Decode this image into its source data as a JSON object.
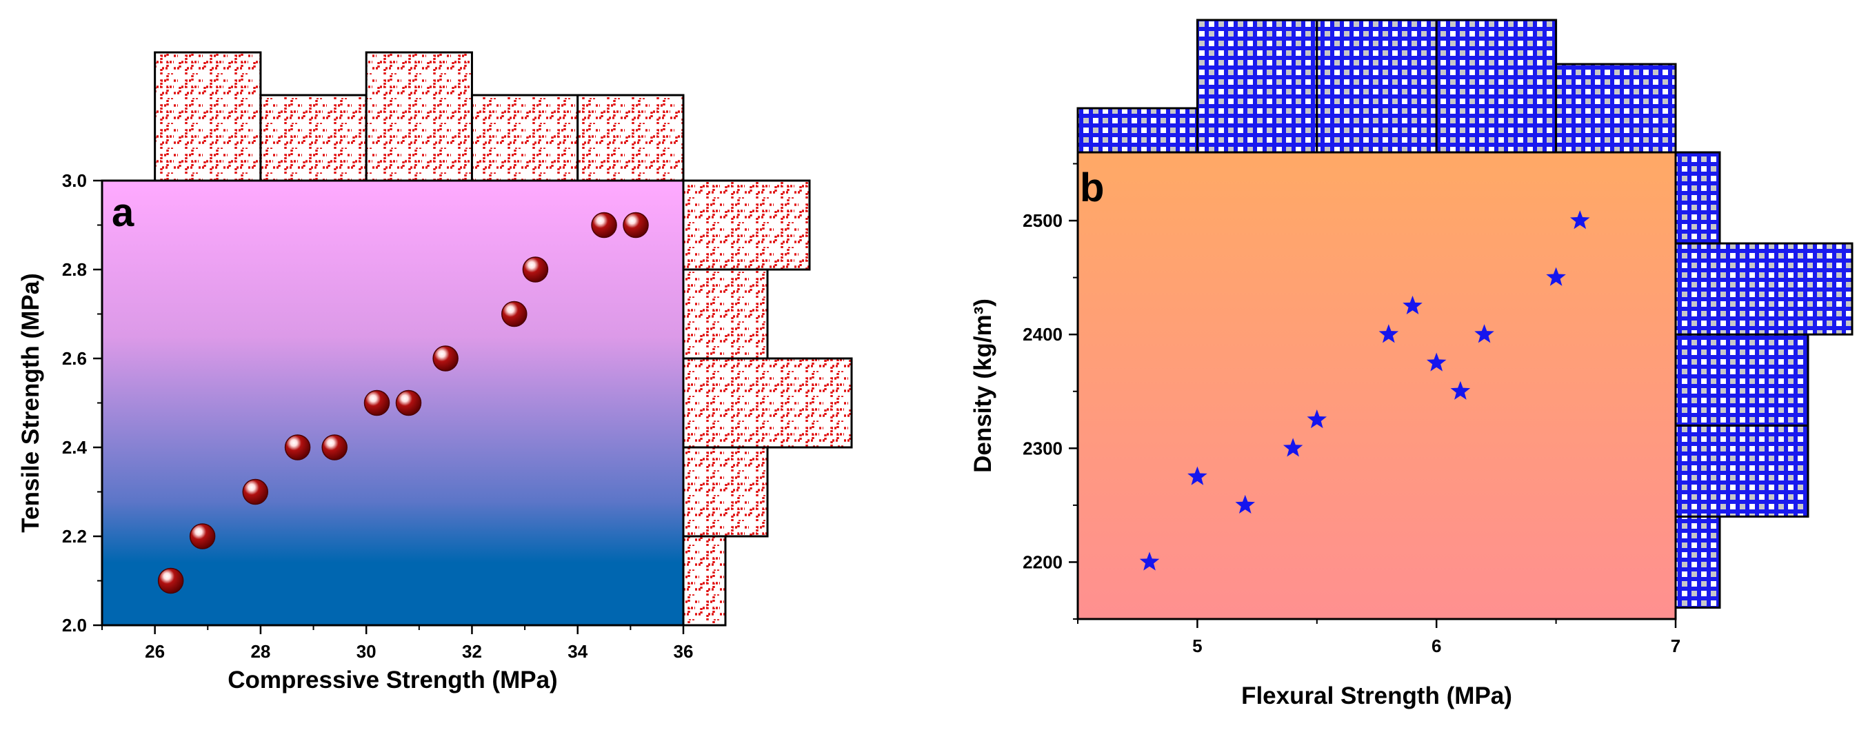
{
  "chart_data": [
    {
      "panel": "a",
      "type": "scatter",
      "xlabel": "Compressive Strength (MPa)",
      "ylabel": "Tensile Strength (MPa)",
      "xlim": [
        25,
        36
      ],
      "ylim": [
        2.0,
        3.0
      ],
      "xticks": [
        26,
        28,
        30,
        32,
        34,
        36
      ],
      "yticks": [
        2.0,
        2.2,
        2.4,
        2.6,
        2.8,
        3.0
      ],
      "ytick_labels": [
        "2.0",
        "2.2",
        "2.4",
        "2.6",
        "2.8",
        "3.0"
      ],
      "marker": "sphere",
      "marker_color": "#8b0000",
      "background_gradient": [
        "#ffaaff",
        "#0066b0"
      ],
      "points": [
        {
          "x": 26.3,
          "y": 2.1
        },
        {
          "x": 26.9,
          "y": 2.2
        },
        {
          "x": 27.9,
          "y": 2.3
        },
        {
          "x": 28.7,
          "y": 2.4
        },
        {
          "x": 29.4,
          "y": 2.4
        },
        {
          "x": 30.2,
          "y": 2.5
        },
        {
          "x": 30.8,
          "y": 2.5
        },
        {
          "x": 31.5,
          "y": 2.6
        },
        {
          "x": 32.8,
          "y": 2.7
        },
        {
          "x": 33.2,
          "y": 2.8
        },
        {
          "x": 34.5,
          "y": 2.9
        },
        {
          "x": 35.1,
          "y": 2.9
        }
      ],
      "top_histogram": {
        "bins": [
          [
            26,
            28
          ],
          [
            28,
            30
          ],
          [
            30,
            32
          ],
          [
            32,
            34
          ],
          [
            34,
            36
          ]
        ],
        "counts": [
          3,
          2,
          3,
          2,
          2
        ]
      },
      "right_histogram": {
        "bins": [
          [
            2.0,
            2.2
          ],
          [
            2.2,
            2.4
          ],
          [
            2.4,
            2.6
          ],
          [
            2.6,
            2.8
          ],
          [
            2.8,
            3.0
          ]
        ],
        "counts": [
          1,
          2,
          4,
          2,
          3
        ]
      },
      "histogram_pattern_color": "#e01010"
    },
    {
      "panel": "b",
      "type": "scatter",
      "xlabel": "Flexural Strength (MPa)",
      "ylabel": "Density (kg/m³)",
      "xlim": [
        4.5,
        7.0
      ],
      "ylim": [
        2150,
        2560
      ],
      "xticks": [
        5,
        6,
        7
      ],
      "yticks": [
        2200,
        2300,
        2400,
        2500
      ],
      "marker": "star",
      "marker_color": "#1515ee",
      "background_gradient": [
        "#ffa966",
        "#ff9090"
      ],
      "points": [
        {
          "x": 4.8,
          "y": 2200
        },
        {
          "x": 5.0,
          "y": 2275
        },
        {
          "x": 5.2,
          "y": 2250
        },
        {
          "x": 5.4,
          "y": 2300
        },
        {
          "x": 5.5,
          "y": 2325
        },
        {
          "x": 5.8,
          "y": 2400
        },
        {
          "x": 5.9,
          "y": 2425
        },
        {
          "x": 6.0,
          "y": 2375
        },
        {
          "x": 6.1,
          "y": 2350
        },
        {
          "x": 6.2,
          "y": 2400
        },
        {
          "x": 6.5,
          "y": 2450
        },
        {
          "x": 6.6,
          "y": 2500
        }
      ],
      "top_histogram": {
        "bins": [
          [
            4.5,
            5.0
          ],
          [
            5.0,
            5.5
          ],
          [
            5.5,
            6.0
          ],
          [
            6.0,
            6.5
          ],
          [
            6.5,
            7.0
          ]
        ],
        "counts": [
          1,
          3,
          3,
          3,
          2
        ]
      },
      "right_histogram": {
        "bins": [
          [
            2160,
            2240
          ],
          [
            2240,
            2320
          ],
          [
            2320,
            2400
          ],
          [
            2400,
            2480
          ],
          [
            2480,
            2560
          ]
        ],
        "counts": [
          1,
          3,
          3,
          4,
          1
        ]
      },
      "histogram_pattern_color": "#1a1aee"
    }
  ]
}
